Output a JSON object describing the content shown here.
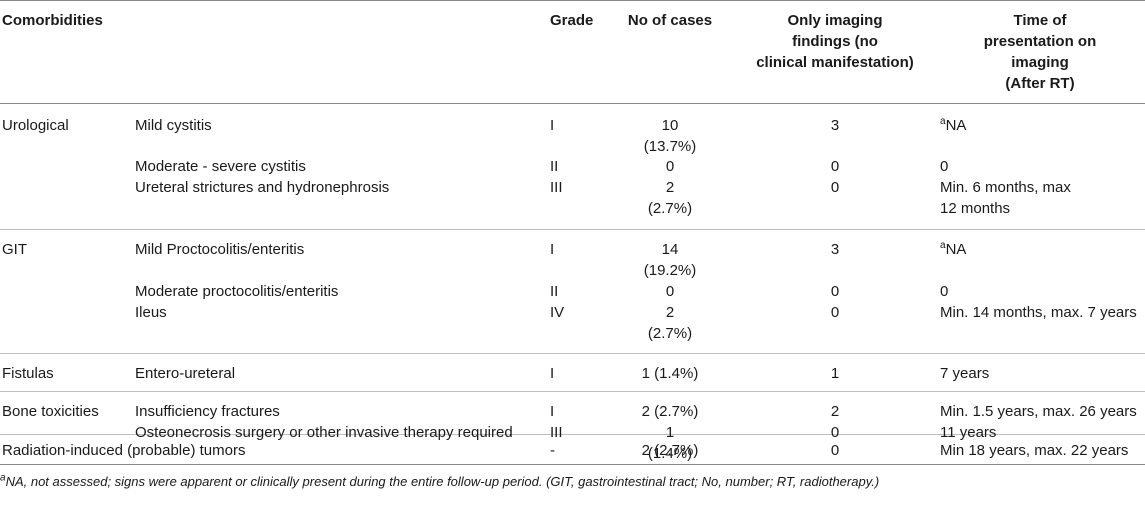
{
  "table": {
    "headers": {
      "comorbidities": "Comorbidities",
      "grade": "Grade",
      "no_cases": "No of cases",
      "imaging_only": [
        "Only imaging",
        "findings (no",
        "clinical manifestation)"
      ],
      "time": [
        "Time of",
        "presentation on",
        "imaging",
        "(After RT)"
      ]
    },
    "groups": [
      {
        "category": "Urological",
        "rows": [
          {
            "item": "Mild cystitis",
            "grade": "I",
            "cases": [
              "10",
              "(13.7%)"
            ],
            "imaging": "3",
            "time_sup": "a",
            "time": [
              "NA"
            ]
          },
          {
            "item": "Moderate - severe cystitis",
            "grade": "II",
            "cases": [
              "0"
            ],
            "imaging": "0",
            "time": [
              "0"
            ]
          },
          {
            "item": "Ureteral strictures and hydronephrosis",
            "grade": "III",
            "cases": [
              "2",
              "(2.7%)"
            ],
            "imaging": "0",
            "time": [
              "Min. 6 months, max",
              "12 months"
            ]
          }
        ]
      },
      {
        "category": "GIT",
        "rows": [
          {
            "item": "Mild Proctocolitis/enteritis",
            "grade": "I",
            "cases": [
              "14",
              "(19.2%)"
            ],
            "imaging": "3",
            "time_sup": "a",
            "time": [
              "NA"
            ]
          },
          {
            "item": "Moderate proctocolitis/enteritis",
            "grade": "II",
            "cases": [
              "0"
            ],
            "imaging": "0",
            "time": [
              "0"
            ]
          },
          {
            "item": "Ileus",
            "grade": "IV",
            "cases": [
              "2",
              "(2.7%)"
            ],
            "imaging": "0",
            "time": [
              "Min. 14 months, max. 7 years"
            ]
          }
        ]
      },
      {
        "category": "Fistulas",
        "rows": [
          {
            "item": "Entero-ureteral",
            "grade": "I",
            "cases": [
              "1 (1.4%)"
            ],
            "imaging": "1",
            "time": [
              "7 years"
            ]
          }
        ]
      },
      {
        "category": "Bone toxicities",
        "rows": [
          {
            "item": "Insufficiency fractures",
            "grade": "I",
            "cases": [
              "2 (2.7%)"
            ],
            "imaging": "2",
            "time": [
              "Min. 1.5 years, max. 26 years"
            ]
          },
          {
            "item": "Osteonecrosis surgery or other invasive therapy required",
            "grade": "III",
            "cases": [
              "1",
              "(1.4%)"
            ],
            "imaging": "0",
            "time": [
              "11 years"
            ]
          }
        ]
      },
      {
        "category": "Radiation-induced (probable) tumors",
        "rows": [
          {
            "item": "",
            "grade": "-",
            "cases": [
              "2 (2.7%)"
            ],
            "imaging": "0",
            "time": [
              "Min 18 years, max. 22 years"
            ]
          }
        ]
      }
    ],
    "footnote_sup": "a",
    "footnote": "NA, not assessed; signs were apparent or clinically present during the entire follow-up period. (GIT, gastrointestinal tract; No, number; RT, radiotherapy.)"
  }
}
